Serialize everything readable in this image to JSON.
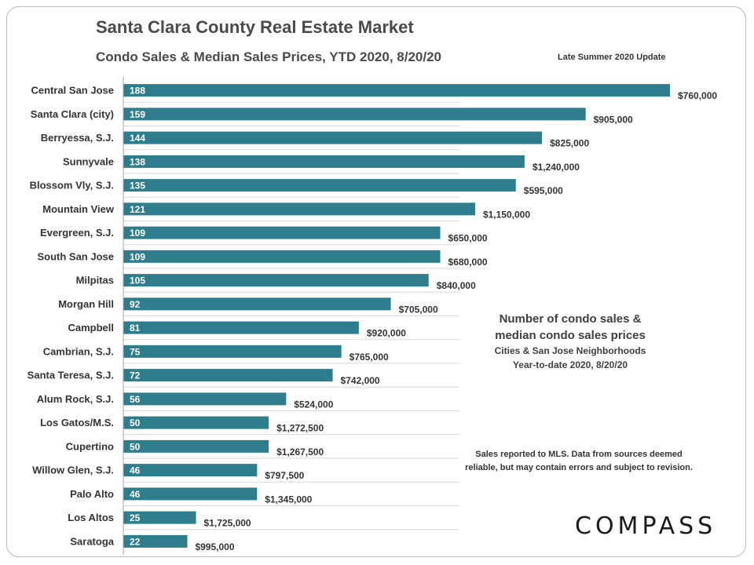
{
  "header": {
    "title": "Santa Clara County Real Estate Market",
    "subtitle": "Condo Sales & Median Sales Prices, YTD 2020, 8/20/20",
    "update_label": "Late Summer 2020 Update"
  },
  "notes": {
    "heading_line1": "Number of condo sales &",
    "heading_line2": "median condo sales prices",
    "detail_line1": "Cities & San Jose Neighborhoods",
    "detail_line2": "Year-to-date 2020, 8/20/20",
    "source_line1": "Sales reported to MLS. Data from sources deemed",
    "source_line2": "reliable, but may contain errors and subject to revision."
  },
  "logo": {
    "text": "COMPASS"
  },
  "colors": {
    "bar": "#2e7d8c",
    "bar_label": "#ffffff",
    "text": "#333333",
    "grid": "#d9d9d9"
  },
  "chart_data": {
    "type": "bar",
    "orientation": "horizontal",
    "categories": [
      "Central San Jose",
      "Santa Clara (city)",
      "Berryessa, S.J.",
      "Sunnyvale",
      "Blossom Vly, S.J.",
      "Mountain View",
      "Evergreen, S.J.",
      "South San Jose",
      "Milpitas",
      "Morgan Hill",
      "Campbell",
      "Cambrian, S.J.",
      "Santa Teresa, S.J.",
      "Alum Rock, S.J.",
      "Los Gatos/M.S.",
      "Cupertino",
      "Willow Glen, S.J.",
      "Palo Alto",
      "Los Altos",
      "Saratoga"
    ],
    "series": [
      {
        "values": [
          188,
          159,
          144,
          138,
          135,
          121,
          109,
          109,
          105,
          92,
          81,
          75,
          72,
          56,
          50,
          50,
          46,
          46,
          25,
          22
        ]
      }
    ],
    "price_labels": [
      "$760,000",
      "$905,000",
      "$825,000",
      "$1,240,000",
      "$595,000",
      "$1,150,000",
      "$650,000",
      "$680,000",
      "$840,000",
      "$705,000",
      "$920,000",
      "$765,000",
      "$742,000",
      "$524,000",
      "$1,272,500",
      "$1,267,500",
      "$797,500",
      "$1,345,000",
      "$1,725,000",
      "$995,000"
    ],
    "xlim": [
      0,
      188
    ],
    "grid": true,
    "legend": "none"
  }
}
